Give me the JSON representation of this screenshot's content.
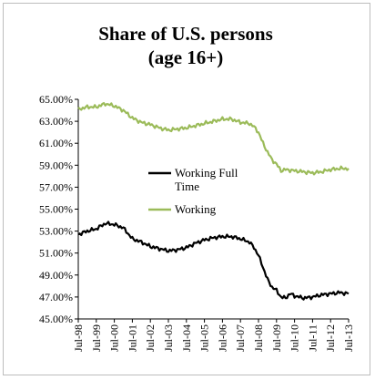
{
  "chart_data": {
    "type": "line",
    "title_lines": [
      "Share of U.S. persons",
      "(age 16+)"
    ],
    "xlabel": "",
    "ylabel": "",
    "ylim": [
      45.0,
      65.0
    ],
    "y_ticks": [
      "65.00%",
      "63.00%",
      "61.00%",
      "59.00%",
      "57.00%",
      "55.00%",
      "53.00%",
      "51.00%",
      "49.00%",
      "47.00%",
      "45.00%"
    ],
    "x_ticks": [
      "Jul-98",
      "Jul-99",
      "Jul-00",
      "Jul-01",
      "Jul-02",
      "Jul-03",
      "Jul-04",
      "Jul-05",
      "Jul-06",
      "Jul-07",
      "Jul-08",
      "Jul-09",
      "Jul-10",
      "Jul-11",
      "Jul-12",
      "Jul-13"
    ],
    "grid": false,
    "legend_placement": "center-right",
    "series": [
      {
        "name": "Working Full Time",
        "color": "#000000",
        "points": [
          [
            "1998-07",
            52.7
          ],
          [
            "1999-01",
            53.0
          ],
          [
            "1999-07",
            53.2
          ],
          [
            "2000-01",
            53.7
          ],
          [
            "2000-07",
            53.6
          ],
          [
            "2001-01",
            53.3
          ],
          [
            "2001-07",
            52.3
          ],
          [
            "2002-01",
            52.0
          ],
          [
            "2002-07",
            51.6
          ],
          [
            "2003-01",
            51.4
          ],
          [
            "2003-07",
            51.2
          ],
          [
            "2004-01",
            51.3
          ],
          [
            "2004-07",
            51.5
          ],
          [
            "2005-01",
            51.9
          ],
          [
            "2005-07",
            52.2
          ],
          [
            "2006-01",
            52.4
          ],
          [
            "2006-07",
            52.5
          ],
          [
            "2007-01",
            52.5
          ],
          [
            "2007-07",
            52.3
          ],
          [
            "2008-01",
            52.0
          ],
          [
            "2008-04",
            51.5
          ],
          [
            "2008-07",
            50.8
          ],
          [
            "2008-10",
            49.7
          ],
          [
            "2009-01",
            48.6
          ],
          [
            "2009-04",
            47.9
          ],
          [
            "2009-07",
            47.6
          ],
          [
            "2009-10",
            47.0
          ],
          [
            "2010-01",
            46.9
          ],
          [
            "2010-04",
            47.3
          ],
          [
            "2010-07",
            47.1
          ],
          [
            "2011-01",
            46.9
          ],
          [
            "2011-07",
            47.0
          ],
          [
            "2012-01",
            47.2
          ],
          [
            "2012-07",
            47.3
          ],
          [
            "2013-01",
            47.4
          ],
          [
            "2013-07",
            47.3
          ]
        ]
      },
      {
        "name": "Working",
        "color": "#9bbb59",
        "points": [
          [
            "1998-07",
            64.1
          ],
          [
            "1999-01",
            64.3
          ],
          [
            "1999-07",
            64.3
          ],
          [
            "2000-01",
            64.6
          ],
          [
            "2000-07",
            64.4
          ],
          [
            "2001-01",
            64.0
          ],
          [
            "2001-07",
            63.3
          ],
          [
            "2002-01",
            62.9
          ],
          [
            "2002-07",
            62.7
          ],
          [
            "2003-01",
            62.4
          ],
          [
            "2003-07",
            62.2
          ],
          [
            "2004-01",
            62.3
          ],
          [
            "2004-07",
            62.4
          ],
          [
            "2005-01",
            62.6
          ],
          [
            "2005-07",
            62.8
          ],
          [
            "2006-01",
            63.0
          ],
          [
            "2006-07",
            63.2
          ],
          [
            "2007-01",
            63.2
          ],
          [
            "2007-07",
            62.9
          ],
          [
            "2008-01",
            62.8
          ],
          [
            "2008-04",
            62.5
          ],
          [
            "2008-07",
            62.0
          ],
          [
            "2008-10",
            61.0
          ],
          [
            "2009-01",
            60.2
          ],
          [
            "2009-04",
            59.5
          ],
          [
            "2009-07",
            59.1
          ],
          [
            "2009-10",
            58.5
          ],
          [
            "2010-01",
            58.6
          ],
          [
            "2010-07",
            58.5
          ],
          [
            "2011-01",
            58.4
          ],
          [
            "2011-07",
            58.3
          ],
          [
            "2012-01",
            58.4
          ],
          [
            "2012-07",
            58.6
          ],
          [
            "2013-01",
            58.7
          ],
          [
            "2013-07",
            58.7
          ]
        ]
      }
    ]
  }
}
